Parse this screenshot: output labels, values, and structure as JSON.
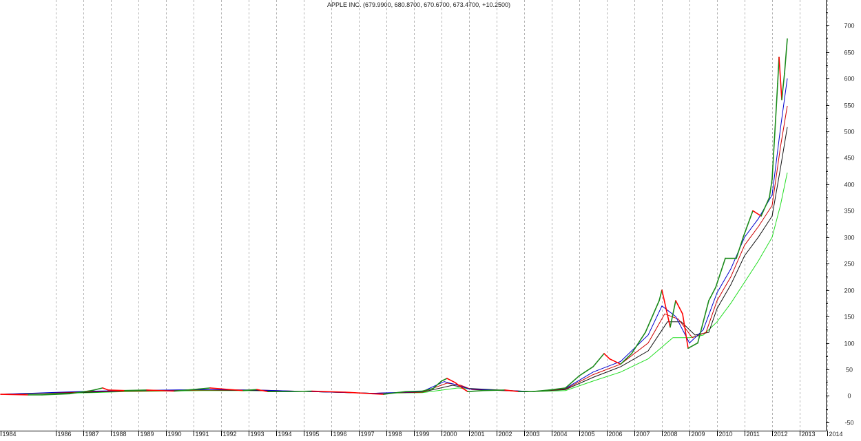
{
  "chart_data": {
    "type": "line",
    "title": "APPLE INC. (679.9900, 680.8700, 670.6700, 673.4700, +10.2500)",
    "xlabel": "",
    "ylabel": "",
    "grid": true,
    "xlim": [
      1984.0,
      2014.9
    ],
    "ylim": [
      -55,
      720
    ],
    "x_ticks": [
      "1984",
      "1986",
      "1987",
      "1988",
      "1989",
      "1990",
      "1991",
      "1992",
      "1993",
      "1994",
      "1995",
      "1996",
      "1997",
      "1998",
      "1999",
      "2000",
      "2001",
      "2002",
      "2003",
      "2004",
      "2005",
      "2006",
      "2007",
      "2008",
      "2009",
      "2010",
      "2011",
      "2012",
      "2013",
      "2014"
    ],
    "y_ticks": [
      "-50",
      "0",
      "50",
      "100",
      "150",
      "200",
      "250",
      "300",
      "350",
      "400",
      "450",
      "500",
      "550",
      "600",
      "650",
      "700"
    ],
    "colors": {
      "price_up": "#1a8a1a",
      "price_down": "#ff0000",
      "ma_short": "#0000cc",
      "ma_medium": "#cc0000",
      "ma_long": "#111111",
      "ma_longest": "#22dd22",
      "grid": "#b4b4b4",
      "axis": "#000000"
    },
    "series": [
      {
        "role": "price",
        "x": [
          1984.0,
          1985.0,
          1985.5,
          1986.5,
          1987.3,
          1987.7,
          1987.9,
          1988.5,
          1989.3,
          1990.3,
          1991.2,
          1991.6,
          1992.3,
          1992.8,
          1993.3,
          1993.7,
          1994.5,
          1995.3,
          1995.8,
          1996.5,
          1997.5,
          1997.9,
          1998.7,
          1999.3,
          1999.7,
          2000.0,
          2000.2,
          2000.5,
          2000.75,
          2000.95,
          2001.5,
          2002.3,
          2002.8,
          2003.3,
          2003.9,
          2004.5,
          2005.0,
          2005.5,
          2005.9,
          2006.1,
          2006.5,
          2006.9,
          2007.4,
          2007.9,
          2008.0,
          2008.3,
          2008.5,
          2008.75,
          2008.95,
          2009.3,
          2009.7,
          2009.95,
          2010.3,
          2010.7,
          2010.95,
          2011.3,
          2011.6,
          2011.9,
          2012.0,
          2012.2,
          2012.25,
          2012.35,
          2012.45,
          2012.55
        ],
        "y": [
          3,
          2,
          2,
          4,
          10,
          15,
          11,
          10,
          11,
          9,
          13,
          15,
          12,
          10,
          12,
          8,
          8,
          9,
          8,
          7,
          4,
          3,
          8,
          9,
          14,
          28,
          33,
          25,
          15,
          8,
          10,
          11,
          8,
          8,
          11,
          15,
          38,
          55,
          80,
          70,
          60,
          80,
          120,
          180,
          200,
          130,
          180,
          155,
          90,
          100,
          180,
          205,
          260,
          260,
          300,
          350,
          340,
          375,
          410,
          590,
          640,
          560,
          610,
          675
        ]
      },
      {
        "role": "moving-average-short",
        "x": [
          1984.0,
          1987.3,
          1988.5,
          1991.3,
          1993.3,
          1995.3,
          1997.5,
          1999.3,
          2000.1,
          2000.6,
          2001.0,
          2003.3,
          2004.5,
          2005.5,
          2006.5,
          2007.5,
          2008.0,
          2008.5,
          2009.0,
          2009.5,
          2010.0,
          2010.5,
          2011.0,
          2011.5,
          2012.0,
          2012.3,
          2012.55
        ],
        "y": [
          3,
          9,
          10,
          12,
          11,
          8,
          5,
          8,
          27,
          20,
          13,
          8,
          14,
          45,
          65,
          115,
          170,
          150,
          100,
          125,
          195,
          240,
          300,
          335,
          380,
          505,
          600
        ]
      },
      {
        "role": "moving-average-medium",
        "x": [
          1984.0,
          1987.3,
          1988.5,
          1991.3,
          1993.3,
          1995.3,
          1997.5,
          1999.3,
          2000.2,
          2000.7,
          2001.1,
          2003.3,
          2004.5,
          2005.5,
          2006.5,
          2007.5,
          2008.1,
          2008.6,
          2009.1,
          2009.6,
          2010.0,
          2010.5,
          2011.0,
          2011.5,
          2012.0,
          2012.3,
          2012.55
        ],
        "y": [
          3,
          8,
          9,
          11,
          11,
          8,
          5,
          7,
          24,
          20,
          12,
          8,
          13,
          40,
          60,
          100,
          155,
          145,
          110,
          120,
          180,
          225,
          285,
          320,
          360,
          470,
          548
        ]
      },
      {
        "role": "moving-average-long",
        "x": [
          1984.0,
          1987.3,
          1988.5,
          1991.3,
          1993.3,
          1995.3,
          1997.5,
          1999.3,
          2000.4,
          2001.0,
          2003.3,
          2004.5,
          2005.5,
          2006.5,
          2007.5,
          2008.2,
          2008.7,
          2009.2,
          2009.7,
          2010.0,
          2010.5,
          2011.0,
          2011.5,
          2012.0,
          2012.3,
          2012.55
        ],
        "y": [
          3,
          7,
          9,
          11,
          10,
          8,
          5,
          7,
          20,
          14,
          8,
          12,
          35,
          55,
          85,
          140,
          140,
          115,
          120,
          165,
          210,
          265,
          300,
          340,
          430,
          508
        ]
      },
      {
        "role": "moving-average-longest",
        "x": [
          1984.0,
          1987.3,
          1988.5,
          1991.3,
          1993.3,
          1995.3,
          1997.5,
          1999.3,
          2000.6,
          2001.3,
          2003.3,
          2004.5,
          2005.5,
          2006.5,
          2007.5,
          2008.4,
          2009.0,
          2009.5,
          2010.0,
          2010.5,
          2011.0,
          2011.5,
          2012.0,
          2012.3,
          2012.55
        ],
        "y": [
          3,
          6,
          8,
          10,
          10,
          8,
          5,
          6,
          15,
          12,
          8,
          10,
          28,
          45,
          70,
          110,
          110,
          115,
          140,
          175,
          215,
          255,
          300,
          360,
          422
        ]
      }
    ]
  }
}
